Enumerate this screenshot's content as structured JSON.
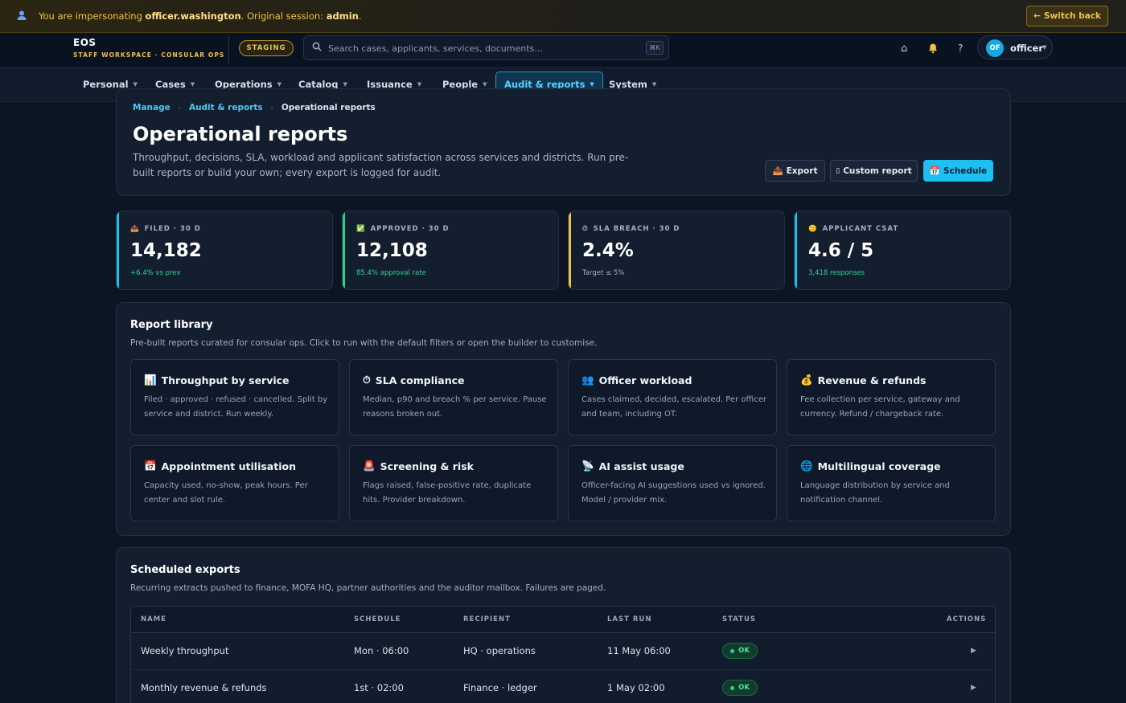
{
  "banner": {
    "text_prefix": "You are impersonating",
    "impersonated_user": "officer.washington",
    "text_mid": ". Original session:",
    "original_user": "admin",
    "text_suffix": ".",
    "switch_back_label": "Switch back"
  },
  "topbar": {
    "brand_name": "EOS",
    "brand_sub": "STAFF WORKSPACE · CONSULAR OPS",
    "env_badge": "STAGING",
    "search_placeholder": "Search cases, applicants, services, documents…",
    "search_shortcut": "⌘K",
    "user_initials": "OF",
    "user_name": "officer"
  },
  "nav": {
    "items": [
      {
        "label": "Personal",
        "active": false
      },
      {
        "label": "Cases",
        "active": false
      },
      {
        "label": "Operations",
        "active": false
      },
      {
        "label": "Catalog",
        "active": false
      },
      {
        "label": "Issuance",
        "active": false
      },
      {
        "label": "People",
        "active": false
      },
      {
        "label": "Audit & reports",
        "active": true
      },
      {
        "label": "System",
        "active": false
      }
    ]
  },
  "breadcrumb": [
    "Manage",
    "Audit & reports",
    "Operational reports"
  ],
  "page": {
    "title": "Operational reports",
    "description": "Throughput, decisions, SLA, workload and applicant satisfaction across services and districts. Run pre-built reports or build your own; every export is logged for audit.",
    "buttons": {
      "export": "Export",
      "custom": "Custom report",
      "schedule": "Schedule"
    }
  },
  "kpis": [
    {
      "icon": "📤",
      "label": "FILED · 30 D",
      "value": "14,182",
      "sub": "+6.4% vs prev",
      "accent": "#1ec0f2",
      "sub_color": "#37d39a"
    },
    {
      "icon": "✅",
      "label": "APPROVED · 30 D",
      "value": "12,108",
      "sub": "85.4% approval rate",
      "accent": "#2fd08a",
      "sub_color": "#37d39a"
    },
    {
      "icon": "⏱",
      "label": "SLA BREACH · 30 D",
      "value": "2.4%",
      "sub": "Target ≤ 5%",
      "accent": "#f0c24a",
      "sub_color": "#a4b1c3"
    },
    {
      "icon": "🙂",
      "label": "APPLICANT CSAT",
      "value": "4.6 / 5",
      "sub": "3,418 responses",
      "accent": "#1ec0f2",
      "sub_color": "#37d39a"
    }
  ],
  "library": {
    "title": "Report library",
    "description": "Pre-built reports curated for consular ops. Click to run with the default filters or open the builder to customise.",
    "reports": [
      {
        "icon": "📊",
        "title": "Throughput by service",
        "desc": "Filed · approved · refused · cancelled. Split by service and district. Run weekly."
      },
      {
        "icon": "⏱",
        "title": "SLA compliance",
        "desc": "Median, p90 and breach % per service. Pause reasons broken out."
      },
      {
        "icon": "👥",
        "title": "Officer workload",
        "desc": "Cases claimed, decided, escalated. Per officer and team, including OT."
      },
      {
        "icon": "💰",
        "title": "Revenue & refunds",
        "desc": "Fee collection per service, gateway and currency. Refund / chargeback rate."
      },
      {
        "icon": "📅",
        "title": "Appointment utilisation",
        "desc": "Capacity used, no-show, peak hours. Per center and slot rule."
      },
      {
        "icon": "🚨",
        "title": "Screening & risk",
        "desc": "Flags raised, false-positive rate, duplicate hits. Provider breakdown."
      },
      {
        "icon": "📡",
        "title": "AI assist usage",
        "desc": "Officer-facing AI suggestions used vs ignored. Model / provider mix."
      },
      {
        "icon": "🌐",
        "title": "Multilingual coverage",
        "desc": "Language distribution by service and notification channel."
      }
    ]
  },
  "scheduled": {
    "title": "Scheduled exports",
    "description": "Recurring extracts pushed to finance, MOFA HQ, partner authorities and the auditor mailbox. Failures are paged.",
    "columns": [
      "NAME",
      "SCHEDULE",
      "RECIPIENT",
      "LAST RUN",
      "STATUS",
      "ACTIONS"
    ],
    "rows": [
      {
        "name": "Weekly throughput",
        "schedule": "Mon · 06:00",
        "recipient": "HQ · operations",
        "last_run": "11 May 06:00",
        "status": "OK"
      },
      {
        "name": "Monthly revenue & refunds",
        "schedule": "1st · 02:00",
        "recipient": "Finance · ledger",
        "last_run": "1 May 02:00",
        "status": "OK"
      }
    ]
  }
}
